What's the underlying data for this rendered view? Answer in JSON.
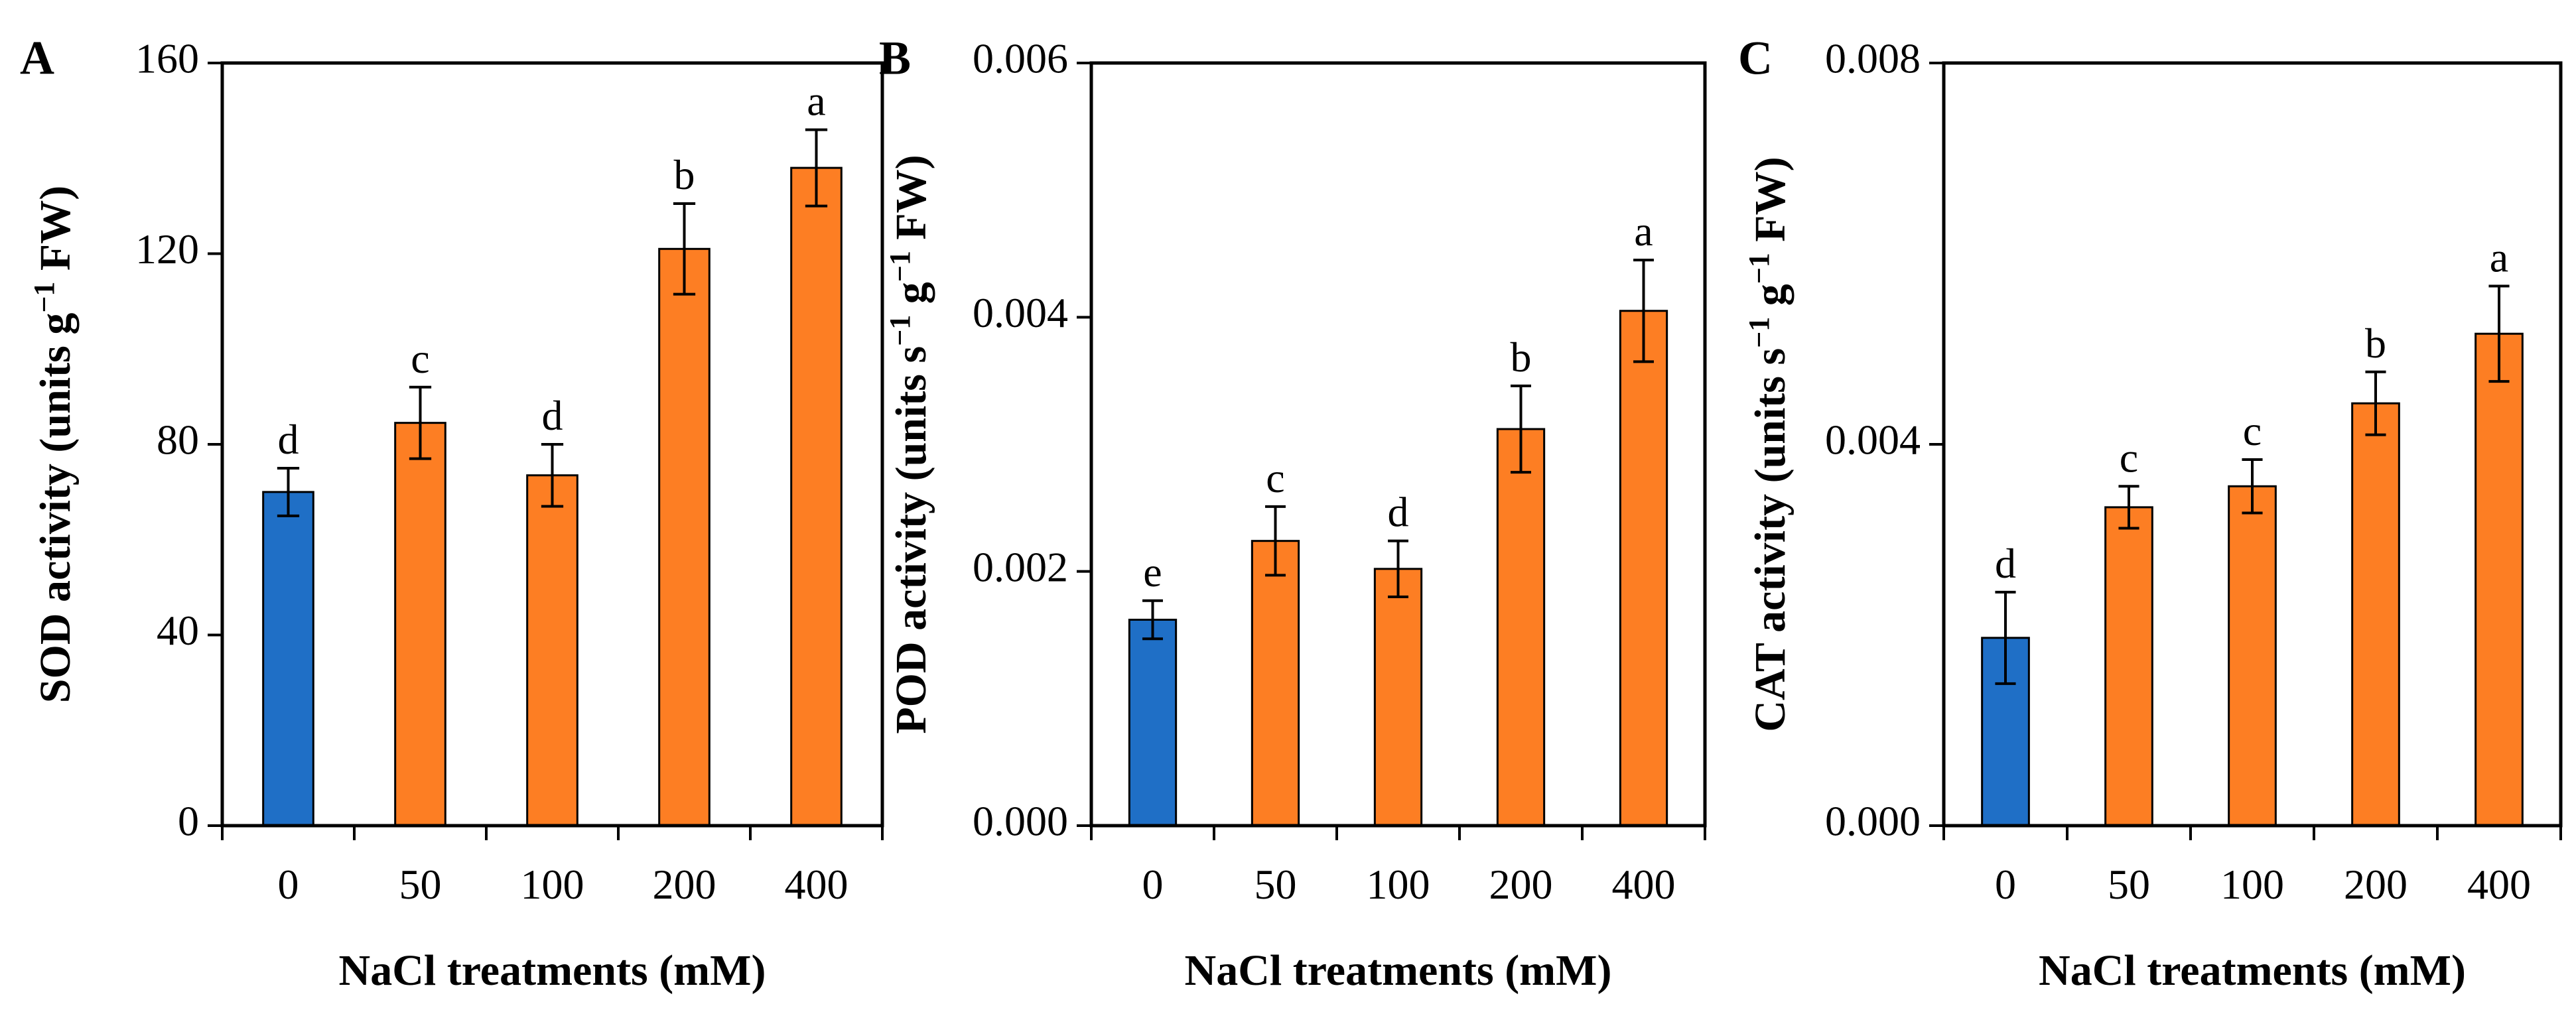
{
  "colors": {
    "control": "#1f6fc6",
    "treatment": "#fd7e23",
    "axis": "#000000"
  },
  "chart_data": [
    {
      "type": "bar",
      "panel_label": "A",
      "categories": [
        "0",
        "50",
        "100",
        "200",
        "400"
      ],
      "values": [
        70,
        84.5,
        73.5,
        121,
        138
      ],
      "errors": [
        5,
        7.5,
        6.5,
        9.5,
        8
      ],
      "significance": [
        "d",
        "c",
        "d",
        "b",
        "a"
      ],
      "ylim": [
        0,
        160
      ],
      "yticks": [
        "0",
        "40",
        "80",
        "120",
        "160"
      ],
      "ytick_values": [
        0,
        40,
        80,
        120,
        160
      ],
      "ylabel_main": "SOD activity (units  g",
      "ylabel_sup": "−1",
      "ylabel_tail": " FW)",
      "xlabel": "NaCl treatments (mM)"
    },
    {
      "type": "bar",
      "panel_label": "B",
      "categories": [
        "0",
        "50",
        "100",
        "200",
        "400"
      ],
      "values": [
        0.00162,
        0.00224,
        0.00202,
        0.00312,
        0.00405
      ],
      "errors": [
        0.00015,
        0.00027,
        0.00022,
        0.00034,
        0.0004
      ],
      "significance": [
        "e",
        "c",
        "d",
        "b",
        "a"
      ],
      "ylim": [
        0,
        0.006
      ],
      "yticks": [
        "0.000",
        "0.002",
        "0.004",
        "0.006"
      ],
      "ytick_values": [
        0,
        0.002,
        0.004,
        0.006
      ],
      "ylabel_main": "POD activity (units s",
      "ylabel_sup": "−1",
      "ylabel_mid": " g",
      "ylabel_sup2": "−1",
      "ylabel_tail": " FW)",
      "xlabel": "NaCl treatments (mM)"
    },
    {
      "type": "bar",
      "panel_label": "C",
      "categories": [
        "0",
        "50",
        "100",
        "200",
        "400"
      ],
      "values": [
        0.00197,
        0.00334,
        0.00356,
        0.00443,
        0.00516
      ],
      "errors": [
        0.00048,
        0.00022,
        0.00028,
        0.00033,
        0.0005
      ],
      "significance": [
        "d",
        "c",
        "c",
        "b",
        "a"
      ],
      "ylim": [
        0,
        0.008
      ],
      "yticks": [
        "0.000",
        "0.004",
        "0.008"
      ],
      "ytick_values": [
        0,
        0.004,
        0.008
      ],
      "ylabel_main": "CAT activity (units s",
      "ylabel_sup": "−1",
      "ylabel_mid": " g",
      "ylabel_sup2": "−1",
      "ylabel_tail": " FW)",
      "xlabel": "NaCl treatments (mM)"
    }
  ]
}
